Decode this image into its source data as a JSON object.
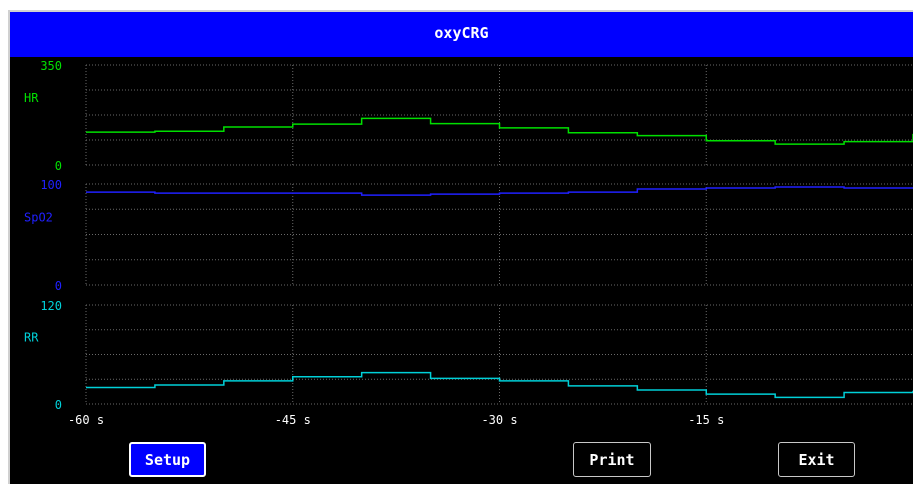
{
  "window": {
    "title": "oxyCRG"
  },
  "channels": [
    {
      "label": "HR",
      "max_label": "350",
      "min_label": "0",
      "color": "#00e000"
    },
    {
      "label": "SpO2",
      "max_label": "100",
      "min_label": "0",
      "color": "#2020ff"
    },
    {
      "label": "RR",
      "max_label": "120",
      "min_label": "0",
      "color": "#00d0d8"
    }
  ],
  "time_axis": [
    "-60 s",
    "-45 s",
    "-30 s",
    "-15 s"
  ],
  "buttons": {
    "setup": "Setup",
    "print": "Print",
    "exit": "Exit"
  },
  "chart_data": {
    "type": "line",
    "x_unit": "s",
    "x": [
      -60,
      -55,
      -50,
      -45,
      -40,
      -35,
      -30,
      -25,
      -20,
      -15,
      -10,
      -5,
      0
    ],
    "xlim": [
      -60,
      0
    ],
    "series": [
      {
        "name": "HR",
        "ylim": [
          0,
          350
        ],
        "values": [
          115,
          118,
          133,
          143,
          163,
          145,
          130,
          113,
          103,
          85,
          73,
          82,
          109
        ]
      },
      {
        "name": "SpO2",
        "ylim": [
          0,
          100
        ],
        "values": [
          92,
          91,
          91,
          91,
          89,
          90,
          91,
          92,
          95,
          96,
          97,
          96,
          96
        ]
      },
      {
        "name": "RR",
        "ylim": [
          0,
          120
        ],
        "values": [
          20,
          23,
          28,
          33,
          38,
          31,
          28,
          22,
          17,
          12,
          8,
          14,
          16
        ]
      }
    ]
  }
}
